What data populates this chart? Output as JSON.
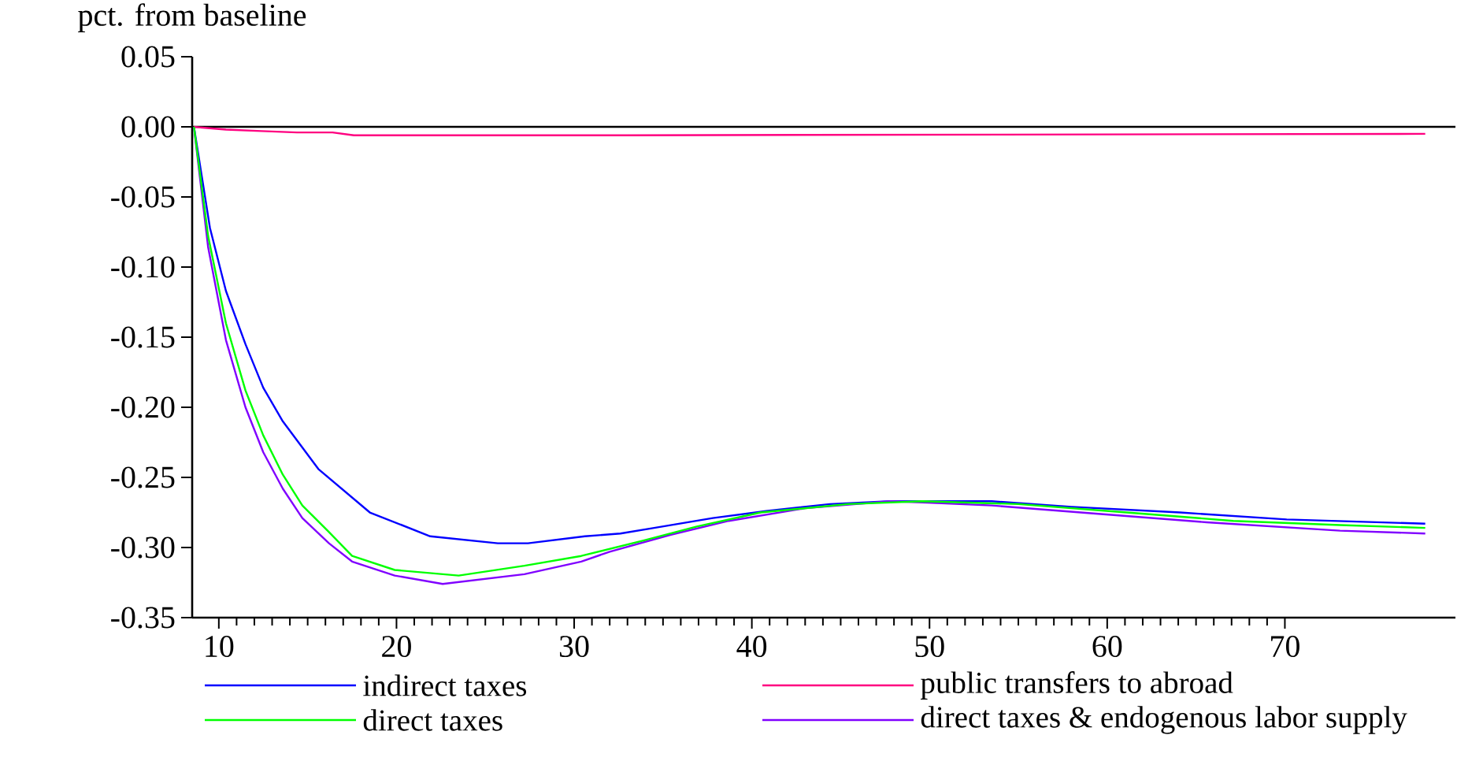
{
  "chart_data": {
    "type": "line",
    "ylabel": "pct. from baseline",
    "xlim": [
      8.5,
      79.6
    ],
    "ylim": [
      -0.35,
      0.05
    ],
    "xticks": [
      10,
      20,
      30,
      40,
      50,
      60,
      70
    ],
    "yticks": [
      {
        "value": 0.05,
        "label": "0.05"
      },
      {
        "value": 0,
        "label": "0.00"
      },
      {
        "value": -0.05,
        "label": "-0.05"
      },
      {
        "value": -0.1,
        "label": "-0.10"
      },
      {
        "value": -0.15,
        "label": "-0.15"
      },
      {
        "value": -0.2,
        "label": "-0.20"
      },
      {
        "value": -0.25,
        "label": "-0.25"
      },
      {
        "value": -0.3,
        "label": "-0.30"
      },
      {
        "value": -0.35,
        "label": "-0.35"
      }
    ],
    "legend": "bottom",
    "ref_lines": [
      {
        "axis": "y",
        "value": 0,
        "color": "#000000"
      }
    ],
    "series": [
      {
        "name": "indirect taxes",
        "color": "#0000ff",
        "x": [
          8.6,
          9.5,
          10.4,
          11.5,
          12.5,
          13.6,
          15.6,
          18.5,
          21.9,
          25.7,
          27.4,
          30.6,
          32.6,
          34.5,
          37.8,
          40.8,
          44.4,
          47.8,
          53.5,
          58.0,
          64.1,
          70.1,
          77.9
        ],
        "values": [
          0,
          -0.072,
          -0.117,
          -0.155,
          -0.186,
          -0.21,
          -0.244,
          -0.275,
          -0.292,
          -0.297,
          -0.297,
          -0.292,
          -0.29,
          -0.286,
          -0.279,
          -0.274,
          -0.269,
          -0.267,
          -0.267,
          -0.271,
          -0.275,
          -0.28,
          -0.283
        ]
      },
      {
        "name": "public transfers to abroad",
        "color": "#ff0080",
        "x": [
          8.6,
          10.4,
          12.4,
          14.4,
          16.4,
          17.6,
          33.0,
          77.9
        ],
        "values": [
          0,
          -0.002,
          -0.003,
          -0.004,
          -0.004,
          -0.006,
          -0.006,
          -0.005
        ]
      },
      {
        "name": "direct taxes",
        "color": "#00ff00",
        "x": [
          8.6,
          9.4,
          10.4,
          11.5,
          12.5,
          13.6,
          14.7,
          16.2,
          17.5,
          19.9,
          23.5,
          27.2,
          30.4,
          33.9,
          36.9,
          40.5,
          45.4,
          49.6,
          55.0,
          61.1,
          67.1,
          73.1,
          77.9
        ],
        "values": [
          0,
          -0.078,
          -0.14,
          -0.188,
          -0.22,
          -0.248,
          -0.27,
          -0.289,
          -0.306,
          -0.316,
          -0.32,
          -0.313,
          -0.306,
          -0.295,
          -0.285,
          -0.275,
          -0.269,
          -0.267,
          -0.269,
          -0.275,
          -0.281,
          -0.284,
          -0.286
        ]
      },
      {
        "name": "direct taxes & endogenous labor supply",
        "color": "#8000ff",
        "x": [
          8.6,
          9.4,
          10.4,
          11.5,
          12.5,
          13.6,
          14.7,
          16.2,
          17.5,
          19.9,
          22.6,
          27.2,
          30.4,
          32.0,
          35.4,
          38.7,
          43.0,
          47.8,
          49.9,
          53.5,
          59.5,
          65.6,
          73.1,
          77.9
        ],
        "values": [
          0,
          -0.086,
          -0.152,
          -0.2,
          -0.232,
          -0.258,
          -0.279,
          -0.297,
          -0.31,
          -0.32,
          -0.326,
          -0.319,
          -0.31,
          -0.303,
          -0.291,
          -0.281,
          -0.272,
          -0.267,
          -0.268,
          -0.27,
          -0.276,
          -0.282,
          -0.288,
          -0.29
        ]
      }
    ]
  }
}
